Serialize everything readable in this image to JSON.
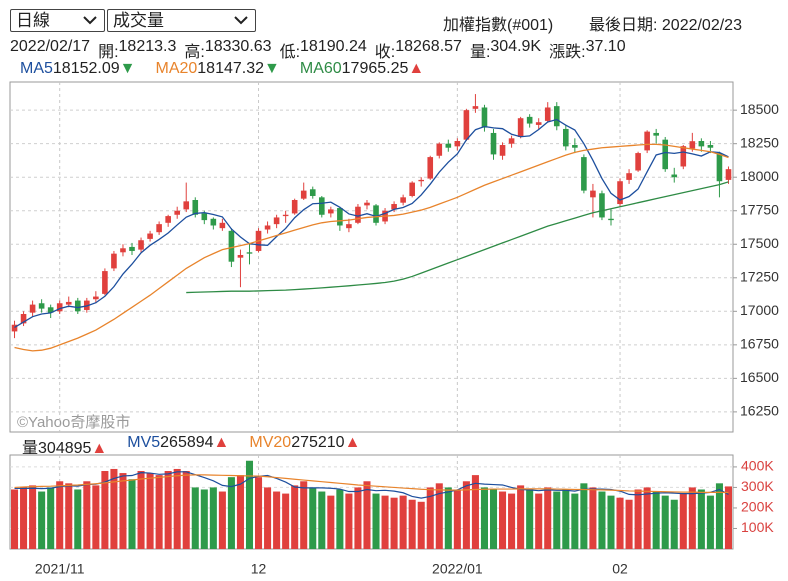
{
  "toolbar": {
    "period": "日線",
    "indicator": "成交量",
    "symbol": "加權指數(#001)",
    "last_date": "最後日期: 2022/02/23"
  },
  "info": {
    "date": "2022/02/17",
    "fields": [
      {
        "label": "開:",
        "value": "18213.3"
      },
      {
        "label": "高:",
        "value": "18330.63"
      },
      {
        "label": "低:",
        "value": "18190.24"
      },
      {
        "label": "收:",
        "value": "18268.57"
      },
      {
        "label": "量:",
        "value": "304.9K"
      },
      {
        "label": "漲跌:",
        "value": "37.10"
      }
    ]
  },
  "watermark": "©Yahoo奇摩股市",
  "chart_data": [
    {
      "type": "candlestick",
      "up_color": "#e0403d",
      "down_color": "#2e9a4a",
      "open": [
        16850,
        16910,
        16990,
        17060,
        17030,
        17000,
        17050,
        17080,
        17010,
        17090,
        17130,
        17320,
        17440,
        17480,
        17460,
        17540,
        17590,
        17660,
        17720,
        17760,
        17830,
        17730,
        17690,
        17620,
        17600,
        17400,
        17440,
        17450,
        17610,
        17650,
        17710,
        17730,
        17840,
        17910,
        17850,
        17730,
        17770,
        17620,
        17660,
        17790,
        17790,
        17670,
        17760,
        17810,
        17860,
        17970,
        17990,
        18160,
        18250,
        18230,
        18280,
        18510,
        18520,
        18330,
        18160,
        18250,
        18300,
        18450,
        18390,
        18420,
        18530,
        18360,
        18240,
        18150,
        17850,
        17880,
        17690,
        17800,
        17980,
        18050,
        18200,
        18330,
        18280,
        18020,
        18080,
        18213.3,
        18270,
        18240,
        18180,
        17980
      ],
      "high": [
        16930,
        17000,
        17080,
        17090,
        17050,
        17080,
        17110,
        17100,
        17100,
        17150,
        17320,
        17450,
        17500,
        17510,
        17550,
        17600,
        17670,
        17720,
        17780,
        17960,
        17850,
        17750,
        17700,
        17690,
        17620,
        17460,
        17510,
        17620,
        17670,
        17720,
        17750,
        17840,
        17960,
        17930,
        17860,
        17780,
        17780,
        17690,
        17800,
        17830,
        17800,
        17770,
        17820,
        17870,
        17970,
        18000,
        18160,
        18260,
        18280,
        18290,
        18510,
        18620,
        18540,
        18360,
        18260,
        18310,
        18450,
        18470,
        18440,
        18560,
        18560,
        18390,
        18290,
        18170,
        17950,
        17900,
        17760,
        17990,
        18060,
        18190,
        18350,
        18360,
        18300,
        18070,
        18240,
        18330.63,
        18290,
        18270,
        18190,
        18080
      ],
      "low": [
        16800,
        16890,
        16960,
        16990,
        16950,
        16980,
        17030,
        16980,
        16990,
        17060,
        17120,
        17300,
        17410,
        17420,
        17440,
        17520,
        17570,
        17630,
        17690,
        17740,
        17700,
        17650,
        17610,
        17600,
        17330,
        17180,
        17350,
        17440,
        17580,
        17620,
        17660,
        17720,
        17830,
        17840,
        17700,
        17700,
        17600,
        17590,
        17650,
        17760,
        17640,
        17650,
        17740,
        17790,
        17850,
        17930,
        17980,
        18140,
        18190,
        18200,
        18270,
        18480,
        18340,
        18130,
        18130,
        18220,
        18290,
        18370,
        18360,
        18410,
        18350,
        18200,
        18180,
        17880,
        17700,
        17680,
        17640,
        17780,
        17950,
        18040,
        18180,
        18250,
        18040,
        17960,
        18060,
        18190.24,
        18190,
        18180,
        17850,
        17950
      ],
      "close": [
        16900,
        16980,
        17050,
        17020,
        16990,
        17060,
        17070,
        17000,
        17080,
        17110,
        17300,
        17430,
        17470,
        17450,
        17530,
        17580,
        17650,
        17710,
        17750,
        17820,
        17720,
        17680,
        17640,
        17660,
        17370,
        17420,
        17430,
        17600,
        17640,
        17700,
        17720,
        17830,
        17900,
        17860,
        17720,
        17760,
        17640,
        17650,
        17780,
        17810,
        17660,
        17750,
        17800,
        17850,
        17960,
        17980,
        18150,
        18250,
        18220,
        18270,
        18500,
        18530,
        18370,
        18170,
        18240,
        18290,
        18440,
        18400,
        18410,
        18520,
        18380,
        18230,
        18220,
        17900,
        17900,
        17700,
        17680,
        17970,
        18030,
        18180,
        18340,
        18310,
        18060,
        18000,
        18231.47,
        18268.57,
        18230,
        18220,
        17970,
        18060
      ],
      "series": [
        {
          "name": "MA5",
          "color": "#1d4f9e",
          "last": 18152.09,
          "trend": "▼",
          "trend_color": "#2e9a4a",
          "values": [
            16880,
            16920,
            16960,
            16980,
            16988,
            17020,
            17038,
            17028,
            17040,
            17064,
            17112,
            17184,
            17278,
            17352,
            17436,
            17492,
            17536,
            17584,
            17644,
            17702,
            17730,
            17736,
            17722,
            17704,
            17614,
            17554,
            17504,
            17496,
            17492,
            17558,
            17618,
            17698,
            17758,
            17802,
            17806,
            17814,
            17776,
            17726,
            17710,
            17728,
            17708,
            17730,
            17760,
            17774,
            17804,
            17868,
            17948,
            18038,
            18112,
            18174,
            18278,
            18354,
            18378,
            18368,
            18362,
            18320,
            18302,
            18308,
            18356,
            18412,
            18430,
            18388,
            18352,
            18250,
            18126,
            17990,
            17880,
            17830,
            17856,
            17912,
            18040,
            18166,
            18184,
            18178,
            18188,
            18174,
            18158,
            18190,
            18184,
            18152.09
          ]
        },
        {
          "name": "MA20",
          "color": "#e8842c",
          "last": 18147.32,
          "trend": "▼",
          "trend_color": "#2e9a4a",
          "values": [
            16730,
            16715,
            16705,
            16710,
            16725,
            16750,
            16775,
            16800,
            16830,
            16860,
            16900,
            16940,
            16985,
            17030,
            17075,
            17120,
            17170,
            17220,
            17270,
            17320,
            17360,
            17400,
            17430,
            17460,
            17475,
            17490,
            17505,
            17525,
            17545,
            17565,
            17585,
            17605,
            17625,
            17645,
            17660,
            17670,
            17675,
            17680,
            17690,
            17700,
            17705,
            17710,
            17715,
            17725,
            17740,
            17755,
            17775,
            17800,
            17825,
            17850,
            17880,
            17910,
            17940,
            17965,
            17990,
            18015,
            18040,
            18065,
            18090,
            18115,
            18140,
            18165,
            18185,
            18200,
            18210,
            18220,
            18225,
            18230,
            18235,
            18240,
            18245,
            18245,
            18240,
            18230,
            18220,
            18210,
            18200,
            18190,
            18170,
            18147.32
          ]
        },
        {
          "name": "MA60",
          "color": "#2e8b45",
          "last": 17965.25,
          "trend": "▲",
          "trend_color": "#e0403d",
          "values": [
            null,
            null,
            null,
            null,
            null,
            null,
            null,
            null,
            null,
            null,
            null,
            null,
            null,
            null,
            null,
            null,
            null,
            null,
            null,
            17140,
            17142,
            17144,
            17146,
            17148,
            17150,
            17150,
            17150,
            17152,
            17154,
            17156,
            17158,
            17162,
            17166,
            17170,
            17175,
            17180,
            17185,
            17190,
            17196,
            17202,
            17208,
            17215,
            17225,
            17240,
            17260,
            17285,
            17310,
            17335,
            17360,
            17385,
            17410,
            17435,
            17460,
            17485,
            17510,
            17535,
            17560,
            17585,
            17610,
            17635,
            17655,
            17675,
            17695,
            17715,
            17735,
            17750,
            17765,
            17780,
            17795,
            17810,
            17825,
            17840,
            17855,
            17870,
            17885,
            17900,
            17915,
            17930,
            17945,
            17965.25
          ]
        }
      ],
      "ylim": [
        16100,
        18710
      ],
      "yticks": [
        16250,
        16500,
        16750,
        17000,
        17250,
        17500,
        17750,
        18000,
        18250,
        18500
      ],
      "grid": true
    },
    {
      "type": "bar",
      "name": "量",
      "last": 304895,
      "trend": "▲",
      "trend_color": "#e0403d",
      "categories": [
        null,
        null,
        null,
        null,
        null,
        "2021/11",
        null,
        null,
        null,
        null,
        null,
        null,
        null,
        null,
        null,
        null,
        null,
        null,
        null,
        null,
        null,
        null,
        null,
        null,
        null,
        null,
        null,
        "12",
        null,
        null,
        null,
        null,
        null,
        null,
        null,
        null,
        null,
        null,
        null,
        null,
        null,
        null,
        null,
        null,
        null,
        null,
        null,
        null,
        null,
        "2022/01",
        null,
        null,
        null,
        null,
        null,
        null,
        null,
        null,
        null,
        null,
        null,
        null,
        null,
        null,
        null,
        null,
        null,
        "02",
        null,
        null,
        null,
        null,
        null,
        null,
        null,
        null,
        null,
        null,
        null,
        null
      ],
      "values": [
        290000,
        300000,
        310000,
        280000,
        300000,
        330000,
        320000,
        290000,
        330000,
        310000,
        380000,
        390000,
        370000,
        340000,
        380000,
        370000,
        360000,
        380000,
        390000,
        380000,
        300000,
        290000,
        300000,
        280000,
        350000,
        360000,
        430000,
        350000,
        300000,
        280000,
        270000,
        310000,
        330000,
        300000,
        280000,
        260000,
        290000,
        270000,
        300000,
        330000,
        270000,
        260000,
        250000,
        260000,
        240000,
        230000,
        300000,
        320000,
        300000,
        290000,
        330000,
        360000,
        300000,
        290000,
        280000,
        270000,
        310000,
        290000,
        270000,
        300000,
        280000,
        290000,
        270000,
        320000,
        300000,
        280000,
        260000,
        250000,
        240000,
        290000,
        300000,
        280000,
        260000,
        240000,
        270000,
        300000,
        290000,
        260000,
        320000,
        304895
      ],
      "series": [
        {
          "name": "MV5",
          "color": "#1d4f9e",
          "last": 265894,
          "trend": "▲",
          "trend_color": "#e0403d",
          "values": [
            295000,
            295000,
            296000,
            294000,
            296000,
            304000,
            308000,
            306000,
            314000,
            316000,
            326000,
            344000,
            356000,
            358000,
            372000,
            370000,
            364000,
            366000,
            376000,
            376000,
            362000,
            348000,
            332000,
            310000,
            304000,
            316000,
            344000,
            354000,
            358000,
            344000,
            326000,
            302000,
            298000,
            298000,
            298000,
            296000,
            292000,
            280000,
            280000,
            290000,
            284000,
            286000,
            282000,
            274000,
            256000,
            248000,
            256000,
            270000,
            278000,
            288000,
            308000,
            320000,
            316000,
            314000,
            312000,
            300000,
            290000,
            288000,
            284000,
            288000,
            286000,
            286000,
            282000,
            292000,
            292000,
            292000,
            290000,
            282000,
            266000,
            264000,
            268000,
            272000,
            274000,
            272000,
            270000,
            270000,
            272000,
            276000,
            290000,
            265894
          ]
        },
        {
          "name": "MV20",
          "color": "#e8842c",
          "last": 275210,
          "trend": "▲",
          "trend_color": "#e0403d",
          "values": [
            300000,
            302000,
            304000,
            305000,
            306000,
            308000,
            310000,
            312000,
            315000,
            318000,
            322000,
            327000,
            332000,
            336000,
            341000,
            345000,
            349000,
            353000,
            357000,
            360000,
            361000,
            361000,
            360000,
            359000,
            358000,
            357000,
            356000,
            355000,
            352000,
            348000,
            344000,
            340000,
            336000,
            332000,
            328000,
            324000,
            320000,
            316000,
            312000,
            309000,
            306000,
            303000,
            300000,
            297000,
            294000,
            291000,
            289000,
            288000,
            287000,
            287000,
            288000,
            290000,
            291000,
            292000,
            292000,
            292000,
            293000,
            293000,
            293000,
            293000,
            292000,
            291000,
            290000,
            290000,
            289000,
            288000,
            287000,
            285000,
            283000,
            282000,
            281000,
            280000,
            279000,
            278000,
            277000,
            277000,
            276000,
            276000,
            276000,
            275210
          ]
        }
      ],
      "ylim": [
        0,
        458000
      ],
      "yticks": [
        {
          "value": 100000,
          "label": "100K"
        },
        {
          "value": 200000,
          "label": "200K"
        },
        {
          "value": 300000,
          "label": "300K"
        },
        {
          "value": 400000,
          "label": "400K"
        }
      ],
      "tick_color": "#d9413f",
      "grid": true
    }
  ]
}
